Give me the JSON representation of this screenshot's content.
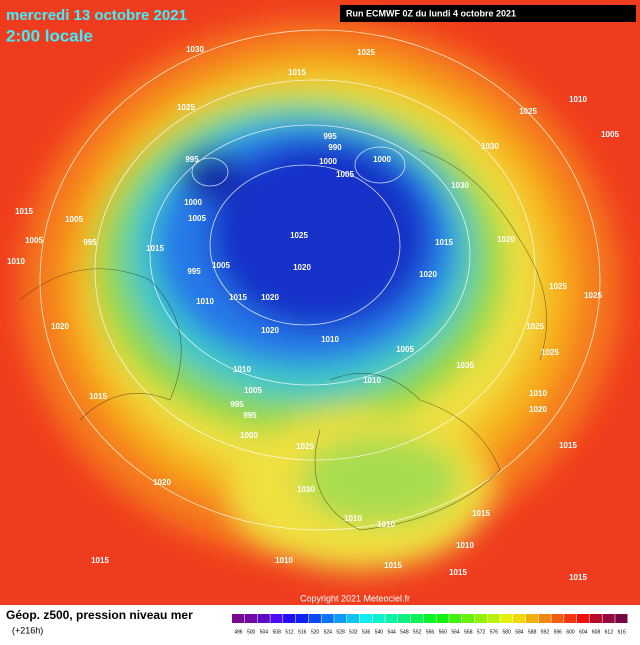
{
  "header": {
    "date": "mercredi 13 octobre 2021",
    "time": "2:00 locale",
    "run": "Run ECMWF 0Z du lundi 4 octobre 2021"
  },
  "footer": {
    "title": "Géop. z500, pression niveau mer",
    "lead": "(+216h)",
    "copyright": "Copyright 2021 Meteociel.fr"
  },
  "scale": {
    "labels": [
      "496",
      "500",
      "504",
      "508",
      "512",
      "516",
      "520",
      "524",
      "528",
      "532",
      "536",
      "540",
      "544",
      "548",
      "552",
      "556",
      "560",
      "564",
      "568",
      "572",
      "576",
      "580",
      "584",
      "588",
      "592",
      "596",
      "600",
      "604",
      "608",
      "612",
      "616"
    ]
  },
  "isobar_labels": [
    "1030",
    "1015",
    "1025",
    "1010",
    "1025",
    "1025",
    "1030",
    "1005",
    "995",
    "990",
    "1000",
    "995",
    "1000",
    "1005",
    "1030",
    "1015",
    "1005",
    "1000",
    "1005",
    "995",
    "1005",
    "1015",
    "1025",
    "1015",
    "1020",
    "1010",
    "995",
    "1005",
    "1020",
    "1020",
    "1025",
    "1010",
    "1015",
    "1020",
    "1025",
    "1020",
    "1020",
    "1010",
    "1005",
    "1035",
    "1025",
    "1025",
    "1010",
    "1010",
    "1005",
    "995",
    "995",
    "1000",
    "1015",
    "1010",
    "1020",
    "1025",
    "1030",
    "1015",
    "1020",
    "1015",
    "1010",
    "1010",
    "1010",
    "1010",
    "1015",
    "1015",
    "1015",
    "1015"
  ]
}
